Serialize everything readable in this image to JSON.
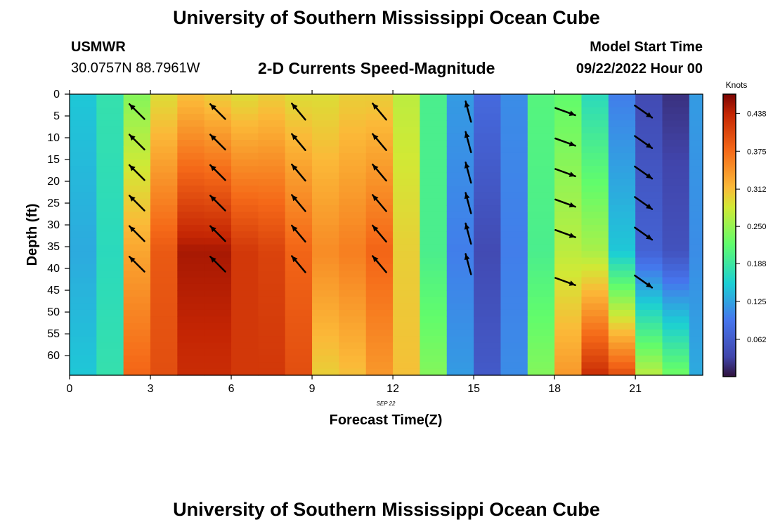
{
  "header": {
    "title": "University of Southern Mississippi Ocean Cube",
    "station_id": "USMWR",
    "coordinates": "30.0757N  88.7961W",
    "chart_title": "2-D Currents Speed-Magnitude",
    "model_start_label": "Model Start Time",
    "model_start_value": "09/22/2022 Hour 00"
  },
  "footer": {
    "title": "University of Southern Mississippi Ocean Cube"
  },
  "chart_data": {
    "type": "heatmap",
    "title": "2-D Currents Speed-Magnitude",
    "xlabel": "Forecast Time(Z)",
    "ylabel": "Depth (ft)",
    "date_label": "SEP 22",
    "xlim": [
      0,
      23.5
    ],
    "ylim": [
      0,
      64.5
    ],
    "x_ticks": [
      0,
      3,
      6,
      9,
      12,
      15,
      18,
      21
    ],
    "y_ticks": [
      0,
      5,
      10,
      15,
      20,
      25,
      30,
      35,
      40,
      45,
      50,
      55,
      60
    ],
    "colorbar": {
      "unit": "Knots",
      "range": [
        0,
        0.47
      ],
      "ticks": [
        "0.438",
        "0.375",
        "0.312",
        "0.250",
        "0.188",
        "0.125",
        "0.062"
      ],
      "tick_values": [
        0.438,
        0.375,
        0.312,
        0.25,
        0.188,
        0.125,
        0.062
      ]
    },
    "speed_by_hour": [
      {
        "hour": 0,
        "surface": 0.15,
        "mid": 0.13,
        "bottom": 0.15
      },
      {
        "hour": 1,
        "surface": 0.18,
        "mid": 0.17,
        "bottom": 0.18
      },
      {
        "hour": 2,
        "surface": 0.24,
        "mid": 0.33,
        "bottom": 0.38
      },
      {
        "hour": 3,
        "surface": 0.29,
        "mid": 0.39,
        "bottom": 0.4
      },
      {
        "hour": 4,
        "surface": 0.31,
        "mid": 0.45,
        "bottom": 0.43
      },
      {
        "hour": 5,
        "surface": 0.3,
        "mid": 0.45,
        "bottom": 0.43
      },
      {
        "hour": 6,
        "surface": 0.29,
        "mid": 0.42,
        "bottom": 0.42
      },
      {
        "hour": 7,
        "surface": 0.3,
        "mid": 0.41,
        "bottom": 0.42
      },
      {
        "hour": 8,
        "surface": 0.29,
        "mid": 0.38,
        "bottom": 0.4
      },
      {
        "hour": 9,
        "surface": 0.29,
        "mid": 0.35,
        "bottom": 0.3
      },
      {
        "hour": 10,
        "surface": 0.3,
        "mid": 0.36,
        "bottom": 0.31
      },
      {
        "hour": 11,
        "surface": 0.3,
        "mid": 0.38,
        "bottom": 0.34
      },
      {
        "hour": 12,
        "surface": 0.27,
        "mid": 0.3,
        "bottom": 0.31
      },
      {
        "hour": 13,
        "surface": 0.2,
        "mid": 0.2,
        "bottom": 0.24
      },
      {
        "hour": 14,
        "surface": 0.12,
        "mid": 0.1,
        "bottom": 0.12
      },
      {
        "hour": 15,
        "surface": 0.08,
        "mid": 0.04,
        "bottom": 0.06
      },
      {
        "hour": 16,
        "surface": 0.11,
        "mid": 0.1,
        "bottom": 0.11
      },
      {
        "hour": 17,
        "surface": 0.21,
        "mid": 0.2,
        "bottom": 0.24
      },
      {
        "hour": 18,
        "surface": 0.22,
        "mid": 0.27,
        "bottom": 0.34
      },
      {
        "hour": 19,
        "surface": 0.17,
        "mid": 0.26,
        "bottom": 0.43
      },
      {
        "hour": 20,
        "surface": 0.1,
        "mid": 0.15,
        "bottom": 0.4
      },
      {
        "hour": 21,
        "surface": 0.04,
        "mid": 0.07,
        "bottom": 0.27
      },
      {
        "hour": 22,
        "surface": 0.02,
        "mid": 0.05,
        "bottom": 0.23
      },
      {
        "hour": 23,
        "surface": 0.12,
        "mid": 0.11,
        "bottom": 0.13
      }
    ],
    "current_vectors": {
      "hours": [
        2.5,
        5.5,
        8.5,
        11.5,
        14.8,
        18.4,
        21.3
      ],
      "depths": [
        4,
        11,
        18,
        25,
        32,
        39
      ],
      "directions_deg": [
        315,
        315,
        320,
        320,
        345,
        110,
        125
      ],
      "bottom_depths": [
        39,
        39,
        39,
        39,
        39,
        43,
        43
      ]
    }
  }
}
